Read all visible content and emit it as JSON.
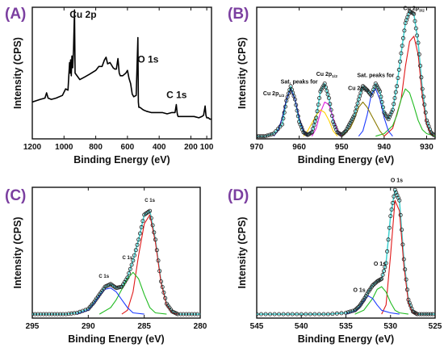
{
  "chart_data": [
    {
      "panel": "(A)",
      "type": "line",
      "xlabel": "Binding Energy (eV)",
      "ylabel": "Intensity (CPS)",
      "xlim": [
        1200,
        70
      ],
      "xticks": [
        1200,
        1000,
        800,
        600,
        400,
        200,
        100
      ],
      "ylim": [
        0,
        100
      ],
      "series": [
        {
          "color": "#000000",
          "x": [
            1200,
            1150,
            1120,
            1110,
            1100,
            1080,
            1050,
            1010,
            990,
            975,
            965,
            962,
            958,
            954,
            950,
            945,
            940,
            934,
            930,
            900,
            870,
            840,
            800,
            780,
            760,
            745,
            735,
            725,
            710,
            690,
            680,
            670,
            660,
            652,
            645,
            630,
            610,
            600,
            590,
            580,
            570,
            560,
            545,
            538,
            534,
            531,
            528,
            522,
            500,
            480,
            450,
            420,
            380,
            350,
            320,
            300,
            292,
            287,
            284,
            280,
            260,
            220,
            180,
            150,
            130,
            120,
            110,
            105,
            100,
            90,
            80,
            70
          ],
          "y": [
            28,
            30,
            31,
            35,
            31,
            30,
            31,
            33,
            38,
            37,
            58,
            50,
            60,
            48,
            63,
            54,
            68,
            98,
            50,
            45,
            47,
            49,
            52,
            55,
            55,
            60,
            62,
            57,
            58,
            54,
            53,
            53,
            61,
            50,
            48,
            48,
            50,
            52,
            46,
            42,
            34,
            32,
            33,
            62,
            77,
            28,
            24,
            24,
            22,
            21,
            20,
            20,
            20,
            19,
            20,
            20,
            26,
            20,
            18,
            17,
            17,
            17,
            17,
            16,
            17,
            18,
            25,
            18,
            16,
            16,
            15,
            15
          ]
        }
      ],
      "annotations": [
        {
          "text": "Cu 2p",
          "x": 880,
          "y": 92
        },
        {
          "text": "O 1s",
          "x": 470,
          "y": 58
        },
        {
          "text": "C 1s",
          "x": 290,
          "y": 31
        }
      ]
    },
    {
      "panel": "(B)",
      "type": "line",
      "xlabel": "Binding Energy (eV)",
      "ylabel": "Intensity (CPS)",
      "xlim": [
        970,
        928
      ],
      "xticks": [
        970,
        960,
        950,
        940,
        930
      ],
      "ylim": [
        0,
        100
      ],
      "series": [
        {
          "color": "#000000",
          "marker": "circle",
          "x": [
            970,
            968,
            966,
            964,
            963,
            962,
            961,
            960,
            959,
            958,
            957,
            956,
            955,
            954,
            953,
            952,
            951,
            950,
            949,
            948,
            947,
            946,
            945,
            944,
            943,
            942,
            941,
            940,
            939,
            938,
            937,
            936,
            935,
            934,
            933,
            932,
            931,
            930,
            929,
            928
          ],
          "y": [
            2,
            2,
            4,
            11,
            29,
            40,
            30,
            13,
            5,
            3,
            5,
            16,
            36,
            42,
            31,
            13,
            5,
            3,
            6,
            12,
            18,
            30,
            40,
            37,
            33,
            42,
            36,
            20,
            15,
            22,
            40,
            65,
            88,
            97,
            95,
            73,
            38,
            14,
            5,
            2
          ]
        },
        {
          "color": "#3fd0d0",
          "x": [
            970,
            968,
            966,
            964,
            963,
            962,
            961,
            960,
            959,
            958,
            957,
            956,
            955,
            954,
            953,
            952,
            951,
            950,
            949,
            948,
            947,
            946,
            945,
            944,
            943,
            942,
            941,
            940,
            939,
            938,
            937,
            936,
            935,
            934,
            933,
            932,
            931,
            930,
            929,
            928
          ],
          "y": [
            2,
            2,
            4,
            11,
            29,
            40,
            30,
            13,
            5,
            3,
            5,
            16,
            36,
            42,
            31,
            13,
            5,
            3,
            6,
            12,
            18,
            30,
            40,
            37,
            33,
            42,
            36,
            20,
            15,
            22,
            40,
            65,
            88,
            97,
            95,
            73,
            38,
            14,
            5,
            2
          ]
        },
        {
          "color": "#e01818",
          "x": [
            940,
            938,
            936,
            935,
            934,
            933,
            932,
            931,
            930,
            929,
            928
          ],
          "y": [
            2,
            8,
            30,
            55,
            74,
            78,
            64,
            32,
            11,
            4,
            2
          ]
        },
        {
          "color": "#22bb22",
          "x": [
            942,
            940,
            938,
            937,
            936,
            935,
            934,
            933,
            932,
            931,
            930,
            928
          ],
          "y": [
            2,
            4,
            10,
            18,
            30,
            38,
            35,
            25,
            14,
            7,
            4,
            2
          ]
        },
        {
          "color": "#1e3cff",
          "x": [
            946,
            945,
            944,
            943,
            942,
            941,
            940,
            939,
            938
          ],
          "y": [
            2,
            6,
            18,
            34,
            38,
            30,
            16,
            6,
            2
          ]
        },
        {
          "color": "#8a7a00",
          "x": [
            950,
            948,
            947,
            946,
            945,
            944,
            943,
            942,
            941,
            940
          ],
          "y": [
            2,
            8,
            15,
            24,
            28,
            24,
            18,
            12,
            6,
            2
          ]
        },
        {
          "color": "#e020e0",
          "x": [
            957,
            956,
            955,
            954,
            953,
            952,
            951,
            950
          ],
          "y": [
            2,
            8,
            20,
            28,
            26,
            16,
            6,
            2
          ]
        },
        {
          "color": "#ffd200",
          "x": [
            959,
            958,
            957,
            956,
            955,
            954,
            953,
            952,
            951
          ],
          "y": [
            2,
            6,
            12,
            18,
            22,
            20,
            14,
            6,
            2
          ]
        },
        {
          "color": "#1010a0",
          "x": [
            966,
            965,
            964,
            963,
            962,
            961,
            960,
            959,
            958
          ],
          "y": [
            2,
            6,
            16,
            30,
            38,
            30,
            16,
            6,
            2
          ]
        }
      ],
      "annotations": [
        {
          "text": "Cu 2p",
          "sub": "3/2",
          "x": 933,
          "y": 98
        },
        {
          "text": "Cu 2p",
          "sub": "1/2",
          "x": 953.5,
          "y": 48
        },
        {
          "text": "Sat. peaks for",
          "x": 960,
          "y": 42
        },
        {
          "text": "Cu 2p",
          "sub": "1/2",
          "x": 966,
          "y": 33
        },
        {
          "text": "Sat. peaks for",
          "x": 942,
          "y": 47
        },
        {
          "text": "Cu 2p",
          "sub": "3/2",
          "x": 946,
          "y": 37
        }
      ]
    },
    {
      "panel": "(C)",
      "type": "line",
      "xlabel": "Binding Energy (eV)",
      "ylabel": "Intensity (CPS)",
      "xlim": [
        295,
        280
      ],
      "xticks": [
        295,
        290,
        285,
        280
      ],
      "ylim": [
        0,
        100
      ],
      "series": [
        {
          "color": "#000000",
          "marker": "circle",
          "x": [
            295,
            294,
            293,
            292,
            291,
            290,
            289.5,
            289,
            288.5,
            288,
            287.5,
            287,
            286.5,
            286,
            285.5,
            285,
            284.5,
            284,
            283.5,
            283,
            282.5,
            282,
            281,
            280
          ],
          "y": [
            3,
            3,
            3,
            3,
            4,
            7,
            12,
            18,
            24,
            26,
            23,
            24,
            31,
            44,
            60,
            79,
            82,
            60,
            28,
            11,
            5,
            3,
            3,
            3
          ]
        },
        {
          "color": "#3fd0d0",
          "x": [
            295,
            294,
            293,
            292,
            291,
            290,
            289.5,
            289,
            288.5,
            288,
            287.5,
            287,
            286.5,
            286,
            285.5,
            285,
            284.5,
            284,
            283.5,
            283,
            282.5,
            282,
            281,
            280
          ],
          "y": [
            3,
            3,
            3,
            3,
            4,
            7,
            12,
            18,
            24,
            26,
            23,
            24,
            31,
            44,
            60,
            79,
            82,
            60,
            28,
            11,
            5,
            3,
            3,
            3
          ]
        },
        {
          "color": "#e01818",
          "x": [
            287,
            286.5,
            286,
            285.5,
            285,
            284.5,
            284,
            283.5,
            283,
            282.5,
            282
          ],
          "y": [
            3,
            6,
            20,
            48,
            72,
            79,
            58,
            27,
            10,
            4,
            3
          ]
        },
        {
          "color": "#22bb22",
          "x": [
            289,
            288,
            287.5,
            287,
            286.5,
            286,
            285.5,
            285,
            284.5,
            284,
            283
          ],
          "y": [
            3,
            8,
            14,
            22,
            30,
            35,
            30,
            18,
            8,
            4,
            3
          ]
        },
        {
          "color": "#1e3cff",
          "x": [
            291,
            290,
            289.5,
            289,
            288.5,
            288,
            287.5,
            287,
            286.5,
            286,
            285
          ],
          "y": [
            3,
            6,
            11,
            17,
            22,
            23,
            20,
            14,
            8,
            4,
            3
          ]
        }
      ],
      "annotations": [
        {
          "text": "C 1s",
          "x": 284.5,
          "y": 89
        },
        {
          "text": "C 1s",
          "x": 286.5,
          "y": 45
        },
        {
          "text": "C 1s",
          "x": 288.6,
          "y": 31
        }
      ]
    },
    {
      "panel": "(D)",
      "type": "line",
      "xlabel": "Binding Energy (eV)",
      "ylabel": "Intensity (CPS)",
      "xlim": [
        545,
        525
      ],
      "xticks": [
        545,
        540,
        535,
        530,
        525
      ],
      "ylim": [
        0,
        100
      ],
      "series": [
        {
          "color": "#000000",
          "marker": "circle",
          "x": [
            545,
            543,
            541,
            539,
            537,
            535,
            534,
            533.5,
            533,
            532.5,
            532,
            531.5,
            531,
            530.5,
            530,
            529.5,
            529,
            528.5,
            528,
            527.5,
            527,
            526,
            525
          ],
          "y": [
            3,
            3,
            3,
            3,
            3,
            4,
            6,
            9,
            14,
            20,
            25,
            28,
            30,
            42,
            78,
            98,
            90,
            45,
            14,
            5,
            3,
            3,
            3
          ]
        },
        {
          "color": "#3fd0d0",
          "x": [
            545,
            543,
            541,
            539,
            537,
            535,
            534,
            533.5,
            533,
            532.5,
            532,
            531.5,
            531,
            530.5,
            530,
            529.5,
            529,
            528.5,
            528,
            527.5,
            527,
            526,
            525
          ],
          "y": [
            3,
            3,
            3,
            3,
            3,
            4,
            6,
            9,
            14,
            20,
            25,
            28,
            30,
            42,
            78,
            98,
            90,
            45,
            14,
            5,
            3,
            3,
            3
          ]
        },
        {
          "color": "#e01818",
          "x": [
            531,
            530.5,
            530,
            529.5,
            529,
            528.5,
            528,
            527.5,
            527
          ],
          "y": [
            3,
            10,
            48,
            90,
            82,
            40,
            12,
            4,
            3
          ]
        },
        {
          "color": "#22bb22",
          "x": [
            534,
            533,
            532,
            531.5,
            531,
            530.5,
            530,
            529.5,
            529,
            528
          ],
          "y": [
            3,
            6,
            15,
            22,
            24,
            20,
            12,
            6,
            4,
            3
          ]
        },
        {
          "color": "#1e3cff",
          "x": [
            535,
            534,
            533.5,
            533,
            532.5,
            532,
            531.5,
            531,
            530,
            529
          ],
          "y": [
            3,
            5,
            8,
            13,
            17,
            15,
            10,
            6,
            4,
            3
          ]
        }
      ],
      "annotations": [
        {
          "text": "O 1s",
          "x": 529.3,
          "y": 104
        },
        {
          "text": "O 1s",
          "x": 531.2,
          "y": 40
        },
        {
          "text": "O 1s",
          "x": 533.5,
          "y": 20
        }
      ]
    }
  ]
}
